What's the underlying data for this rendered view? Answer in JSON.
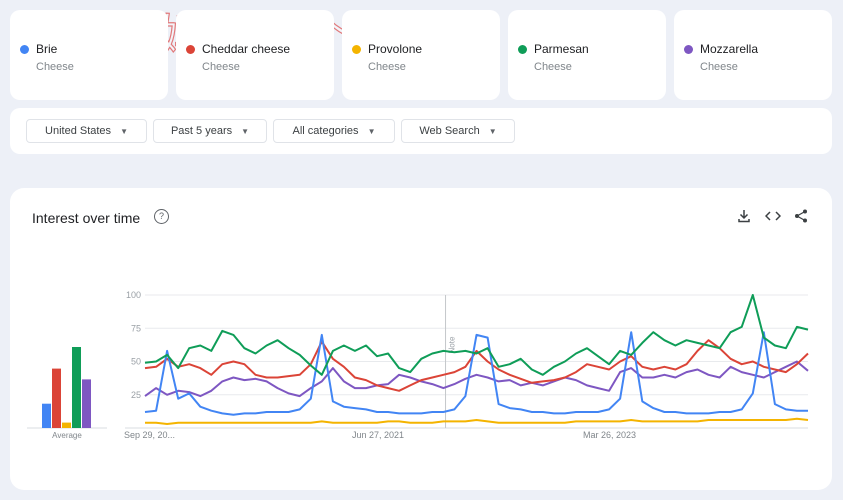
{
  "watermark": "选择他妈滴一个大电视",
  "terms": [
    {
      "name": "Brie",
      "category": "Cheese",
      "color": "#4285f4"
    },
    {
      "name": "Cheddar cheese",
      "category": "Cheese",
      "color": "#db4437"
    },
    {
      "name": "Provolone",
      "category": "Cheese",
      "color": "#f4b400"
    },
    {
      "name": "Parmesan",
      "category": "Cheese",
      "color": "#0f9d58"
    },
    {
      "name": "Mozzarella",
      "category": "Cheese",
      "color": "#7e57c2"
    }
  ],
  "filters": [
    {
      "label": "United States",
      "icon": "dropdown-arrow"
    },
    {
      "label": "Past 5 years",
      "icon": "dropdown-arrow"
    },
    {
      "label": "All categories",
      "icon": "dropdown-arrow"
    },
    {
      "label": "Web Search",
      "icon": "dropdown-arrow"
    }
  ],
  "panel": {
    "title": "Interest over time",
    "help_icon": "help-circle-icon",
    "actions": [
      "download-icon",
      "embed-code-icon",
      "share-icon"
    ]
  },
  "chart_data": {
    "type": "line",
    "yticks": [
      25,
      50,
      75,
      100
    ],
    "ylim": [
      0,
      100
    ],
    "xtick_labels": [
      "Sep 29, 20...",
      "Jun 27, 2021",
      "Mar 26, 2023"
    ],
    "x_range": [
      "2019-09-29",
      "2024-09-22"
    ],
    "annotation": {
      "label": "Note",
      "date": "2022-01-01"
    },
    "grid": true,
    "average_label": "Average",
    "averages": [
      18,
      44,
      4,
      60,
      36
    ],
    "series": [
      {
        "name": "Brie",
        "color": "#4285f4",
        "values": [
          12,
          13,
          58,
          22,
          26,
          16,
          13,
          11,
          10,
          11,
          11,
          12,
          12,
          12,
          14,
          22,
          70,
          20,
          16,
          15,
          14,
          12,
          12,
          11,
          11,
          11,
          12,
          12,
          14,
          24,
          70,
          68,
          18,
          15,
          14,
          12,
          12,
          11,
          11,
          12,
          12,
          12,
          14,
          22,
          72,
          20,
          15,
          12,
          12,
          11,
          11,
          11,
          12,
          12,
          14,
          26,
          72,
          18,
          14,
          13,
          13
        ]
      },
      {
        "name": "Cheddar cheese",
        "color": "#db4437",
        "values": [
          45,
          46,
          52,
          46,
          48,
          45,
          40,
          48,
          50,
          48,
          40,
          38,
          38,
          39,
          40,
          48,
          65,
          52,
          46,
          38,
          36,
          32,
          30,
          28,
          32,
          36,
          38,
          40,
          42,
          46,
          58,
          50,
          44,
          40,
          37,
          34,
          35,
          36,
          38,
          42,
          48,
          46,
          44,
          50,
          54,
          46,
          44,
          46,
          44,
          48,
          58,
          66,
          60,
          52,
          48,
          50,
          46,
          44,
          42,
          48,
          56
        ]
      },
      {
        "name": "Provolone",
        "color": "#f4b400",
        "values": [
          4,
          4,
          3,
          4,
          4,
          4,
          4,
          4,
          4,
          4,
          4,
          4,
          4,
          4,
          4,
          4,
          5,
          4,
          4,
          4,
          4,
          4,
          5,
          5,
          4,
          4,
          4,
          5,
          5,
          5,
          6,
          5,
          4,
          4,
          4,
          4,
          4,
          4,
          4,
          5,
          5,
          5,
          5,
          5,
          6,
          5,
          5,
          5,
          5,
          5,
          5,
          6,
          6,
          6,
          6,
          6,
          6,
          6,
          6,
          7,
          6
        ]
      },
      {
        "name": "Parmesan",
        "color": "#0f9d58",
        "values": [
          49,
          50,
          55,
          45,
          60,
          62,
          58,
          73,
          70,
          60,
          56,
          62,
          66,
          60,
          55,
          47,
          40,
          58,
          62,
          58,
          62,
          54,
          56,
          45,
          42,
          52,
          56,
          58,
          57,
          58,
          56,
          60,
          46,
          48,
          52,
          44,
          40,
          46,
          50,
          56,
          60,
          54,
          48,
          58,
          55,
          64,
          72,
          66,
          62,
          66,
          64,
          62,
          60,
          72,
          76,
          100,
          68,
          62,
          60,
          76,
          74
        ]
      },
      {
        "name": "Mozzarella",
        "color": "#7e57c2",
        "values": [
          24,
          30,
          25,
          28,
          27,
          24,
          28,
          35,
          38,
          36,
          37,
          35,
          30,
          26,
          24,
          30,
          35,
          45,
          35,
          30,
          30,
          32,
          33,
          40,
          38,
          35,
          33,
          30,
          33,
          37,
          40,
          38,
          35,
          36,
          32,
          34,
          32,
          35,
          38,
          36,
          32,
          30,
          28,
          42,
          45,
          38,
          38,
          40,
          38,
          42,
          44,
          40,
          38,
          46,
          42,
          40,
          38,
          42,
          46,
          50,
          43
        ]
      }
    ]
  }
}
